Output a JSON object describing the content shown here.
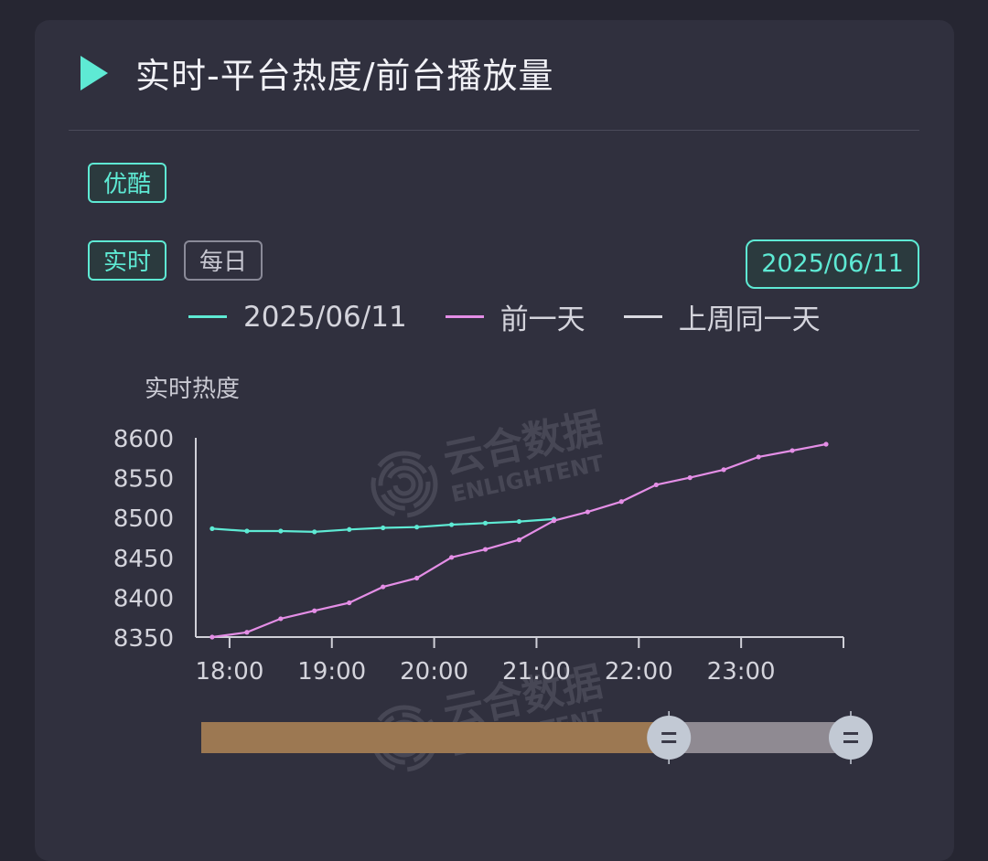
{
  "header": {
    "title": "实时-平台热度/前台播放量"
  },
  "platform_tabs": [
    {
      "label": "优酷",
      "active": true
    }
  ],
  "mode_tabs": [
    {
      "label": "实时",
      "active": true
    },
    {
      "label": "每日",
      "active": false
    }
  ],
  "date_picker": {
    "value": "2025/06/11"
  },
  "watermark": {
    "cn": "云合数据",
    "en": "ENLIGHTENT"
  },
  "colors": {
    "today": "#5eead4",
    "yesterday": "#e48ee6",
    "last_week": "#d9d9e0",
    "accent": "#5eead4"
  },
  "chart_data": {
    "type": "line",
    "ylabel": "实时热度",
    "ylim": [
      8350,
      8600
    ],
    "yticks": [
      8350,
      8400,
      8450,
      8500,
      8550,
      8600
    ],
    "xlim": [
      17.67,
      24.0
    ],
    "xticks": [
      {
        "v": 18,
        "label": "18:00"
      },
      {
        "v": 19,
        "label": "19:00"
      },
      {
        "v": 20,
        "label": "20:00"
      },
      {
        "v": 21,
        "label": "21:00"
      },
      {
        "v": 22,
        "label": "22:00"
      },
      {
        "v": 23,
        "label": "23:00"
      }
    ],
    "series": [
      {
        "name": "2025/06/11",
        "color": "#5eead4",
        "x": [
          17.83,
          18.17,
          18.5,
          18.83,
          19.17,
          19.5,
          19.83,
          20.17,
          20.5,
          20.83,
          21.17
        ],
        "y": [
          8486,
          8483,
          8483,
          8482,
          8485,
          8487,
          8488,
          8491,
          8493,
          8495,
          8498
        ]
      },
      {
        "name": "前一天",
        "color": "#e48ee6",
        "x": [
          17.83,
          18.17,
          18.5,
          18.83,
          19.17,
          19.5,
          19.83,
          20.17,
          20.5,
          20.83,
          21.17,
          21.5,
          21.83,
          22.17,
          22.5,
          22.83,
          23.17,
          23.5,
          23.83
        ],
        "y": [
          8350,
          8356,
          8373,
          8383,
          8393,
          8413,
          8424,
          8450,
          8460,
          8472,
          8496,
          8507,
          8520,
          8541,
          8550,
          8560,
          8576,
          8584,
          8592
        ]
      },
      {
        "name": "上周同一天",
        "color": "#d9d9e0",
        "x": [],
        "y": []
      }
    ],
    "data_zoom": {
      "start": 0.72,
      "end": 1.0
    }
  }
}
